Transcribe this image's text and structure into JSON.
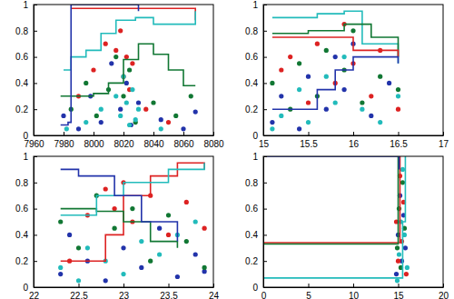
{
  "chart_data": [
    {
      "type": "scatter",
      "xlim": [
        7960,
        8080
      ],
      "ylim": [
        0,
        1
      ],
      "xticks": [
        7960,
        7980,
        8000,
        8020,
        8040,
        8060,
        8080
      ],
      "yticks": [
        0,
        0.2,
        0.4,
        0.6,
        0.8,
        1
      ],
      "series": [
        {
          "type": "scatter",
          "marker": "circle",
          "color": "#2233aa",
          "x": [
            7980,
            7990,
            7998,
            8005,
            8012,
            8018,
            8022,
            8025,
            8030,
            8045,
            8060,
            8068
          ],
          "values": [
            0.15,
            0.05,
            0.3,
            0.1,
            0.55,
            0.2,
            0.4,
            0.08,
            0.25,
            0.12,
            0.05,
            0.18
          ]
        },
        {
          "type": "scatter",
          "marker": "circle",
          "color": "#117733",
          "x": [
            7985,
            7995,
            8002,
            8010,
            8015,
            8020,
            8024,
            8028,
            8040,
            8055,
            8065
          ],
          "values": [
            0.2,
            0.4,
            0.15,
            0.35,
            0.6,
            0.3,
            0.5,
            0.1,
            0.25,
            0.15,
            0.3
          ]
        },
        {
          "type": "scatter",
          "marker": "circle",
          "color": "#dd2222",
          "x": [
            7990,
            8000,
            8008,
            8015,
            8018,
            8020,
            8022,
            8024,
            8026,
            8035,
            8050
          ],
          "values": [
            0.3,
            0.5,
            0.7,
            0.65,
            0.8,
            0.45,
            0.6,
            0.35,
            0.55,
            0.2,
            0.1
          ]
        },
        {
          "type": "scatter",
          "marker": "circle",
          "color": "#22bbbb",
          "x": [
            7982,
            7995,
            8005,
            8015,
            8018,
            8020,
            8022,
            8024,
            8026,
            8028,
            8030,
            8045
          ],
          "values": [
            0.05,
            0.1,
            0.2,
            0.3,
            0.15,
            0.45,
            0.25,
            0.08,
            0.35,
            0.12,
            0.2,
            0.05
          ]
        },
        {
          "type": "line",
          "line_style": "step",
          "color": "#dd2222",
          "x": [
            7985,
            8060,
            8068
          ],
          "values": [
            0.97,
            0.97,
            0.88
          ]
        },
        {
          "type": "line",
          "line_style": "step",
          "color": "#22bbbb",
          "x": [
            7980,
            7985,
            7995,
            8005,
            8015,
            8028,
            8040,
            8060,
            8068
          ],
          "values": [
            0.5,
            0.6,
            0.65,
            0.78,
            0.88,
            0.9,
            0.85,
            0.85,
            0.95
          ]
        },
        {
          "type": "line",
          "line_style": "step",
          "color": "#117733",
          "x": [
            7978,
            8000,
            8010,
            8020,
            8030,
            8040,
            8050,
            8060,
            8068
          ],
          "values": [
            0.3,
            0.32,
            0.4,
            0.58,
            0.7,
            0.62,
            0.5,
            0.38,
            0.38
          ]
        },
        {
          "type": "line",
          "line_style": "step",
          "color": "#2233aa",
          "x": [
            7978,
            7983,
            7985,
            8020,
            8030
          ],
          "values": [
            0.08,
            0.1,
            1,
            1,
            0.95
          ]
        }
      ]
    },
    {
      "type": "scatter",
      "xlim": [
        15,
        17
      ],
      "ylim": [
        0,
        1
      ],
      "xticks": [
        15,
        15.5,
        16,
        16.5,
        17
      ],
      "yticks": [
        0,
        0.2,
        0.4,
        0.6,
        0.8,
        1
      ],
      "series": [
        {
          "type": "scatter",
          "marker": "circle",
          "color": "#2233aa",
          "x": [
            15.1,
            15.2,
            15.4,
            15.5,
            15.7,
            15.8,
            15.9,
            16.0,
            16.2,
            16.4
          ],
          "values": [
            0.1,
            0.3,
            0.05,
            0.45,
            0.2,
            0.6,
            0.35,
            0.7,
            0.15,
            0.4
          ]
        },
        {
          "type": "scatter",
          "marker": "circle",
          "color": "#117733",
          "x": [
            15.1,
            15.3,
            15.4,
            15.6,
            15.7,
            15.9,
            16.0,
            16.1,
            16.3,
            16.5
          ],
          "values": [
            0.4,
            0.2,
            0.55,
            0.3,
            0.65,
            0.5,
            0.8,
            0.25,
            0.45,
            0.35
          ]
        },
        {
          "type": "scatter",
          "marker": "circle",
          "color": "#dd2222",
          "x": [
            15.2,
            15.3,
            15.5,
            15.6,
            15.8,
            15.9,
            16.0,
            16.2,
            16.3,
            16.5
          ],
          "values": [
            0.5,
            0.6,
            0.25,
            0.7,
            0.4,
            0.85,
            0.55,
            0.3,
            0.65,
            0.2
          ]
        },
        {
          "type": "scatter",
          "marker": "circle",
          "color": "#22bbbb",
          "x": [
            15.1,
            15.2,
            15.4,
            15.5,
            15.7,
            15.8,
            15.9,
            16.1,
            16.3,
            16.5
          ],
          "values": [
            0.05,
            0.15,
            0.35,
            0.1,
            0.45,
            0.25,
            0.6,
            0.2,
            0.1,
            0.3
          ]
        },
        {
          "type": "line",
          "line_style": "step",
          "color": "#22bbbb",
          "x": [
            15.1,
            15.6,
            15.9,
            16.1,
            16.5
          ],
          "values": [
            0.9,
            0.93,
            0.95,
            0.7,
            0.55
          ]
        },
        {
          "type": "line",
          "line_style": "step",
          "color": "#117733",
          "x": [
            15.1,
            15.5,
            15.9,
            16.2,
            16.5
          ],
          "values": [
            0.78,
            0.8,
            0.85,
            0.75,
            0.6
          ]
        },
        {
          "type": "line",
          "line_style": "step",
          "color": "#dd2222",
          "x": [
            15.1,
            15.8,
            16.0,
            16.5
          ],
          "values": [
            0.75,
            0.75,
            0.65,
            0.6
          ]
        },
        {
          "type": "line",
          "line_style": "step",
          "color": "#2233aa",
          "x": [
            15.1,
            15.6,
            15.8,
            16.0,
            16.5
          ],
          "values": [
            0.2,
            0.35,
            0.5,
            0.6,
            0.55
          ]
        }
      ]
    },
    {
      "type": "scatter",
      "xlim": [
        22,
        24
      ],
      "ylim": [
        0,
        1
      ],
      "xticks": [
        22,
        22.5,
        23,
        23.5,
        24
      ],
      "yticks": [
        0,
        0.2,
        0.4,
        0.6,
        0.8,
        1
      ],
      "series": [
        {
          "type": "scatter",
          "marker": "circle",
          "color": "#2233aa",
          "x": [
            22.3,
            22.4,
            22.6,
            22.8,
            23.0,
            23.2,
            23.4,
            23.6,
            23.8,
            23.9
          ],
          "values": [
            0.1,
            0.4,
            0.2,
            0.05,
            0.3,
            0.15,
            0.45,
            0.08,
            0.25,
            0.12
          ]
        },
        {
          "type": "scatter",
          "marker": "circle",
          "color": "#117733",
          "x": [
            22.3,
            22.5,
            22.7,
            22.9,
            23.1,
            23.3,
            23.5,
            23.7,
            23.9
          ],
          "values": [
            0.5,
            0.3,
            0.7,
            0.45,
            0.6,
            0.2,
            0.55,
            0.35,
            0.15
          ]
        },
        {
          "type": "scatter",
          "marker": "circle",
          "color": "#dd2222",
          "x": [
            22.4,
            22.6,
            22.8,
            22.9,
            23.0,
            23.1,
            23.3,
            23.5,
            23.7,
            23.9
          ],
          "values": [
            0.2,
            0.55,
            0.75,
            0.6,
            0.8,
            0.5,
            0.7,
            0.4,
            0.65,
            0.45
          ]
        },
        {
          "type": "scatter",
          "marker": "circle",
          "color": "#22bbbb",
          "x": [
            22.3,
            22.5,
            22.6,
            22.8,
            23.0,
            23.2,
            23.4,
            23.6,
            23.8
          ],
          "values": [
            0.15,
            0.05,
            0.3,
            0.2,
            0.1,
            0.35,
            0.25,
            0.4,
            0.5
          ]
        },
        {
          "type": "line",
          "line_style": "step",
          "color": "#dd2222",
          "x": [
            22.3,
            22.8,
            23.0,
            23.3,
            23.6,
            23.9
          ],
          "values": [
            0.2,
            0.4,
            0.7,
            0.85,
            0.95,
            0.9
          ]
        },
        {
          "type": "line",
          "line_style": "step",
          "color": "#117733",
          "x": [
            22.3,
            22.7,
            23.0,
            23.3,
            23.6
          ],
          "values": [
            0.6,
            0.58,
            0.5,
            0.35,
            0.3
          ]
        },
        {
          "type": "line",
          "line_style": "step",
          "color": "#22bbbb",
          "x": [
            22.3,
            22.7,
            23.0,
            23.5,
            23.9
          ],
          "values": [
            0.55,
            0.7,
            0.8,
            0.9,
            0.95
          ]
        },
        {
          "type": "line",
          "line_style": "step",
          "color": "#2233aa",
          "x": [
            22.3,
            22.5,
            22.9,
            23.2,
            23.6
          ],
          "values": [
            0.9,
            0.85,
            0.7,
            0.5,
            0.35
          ]
        }
      ]
    },
    {
      "type": "scatter",
      "xlim": [
        0,
        20
      ],
      "ylim": [
        0,
        1
      ],
      "xticks": [
        0,
        5,
        10,
        15,
        20
      ],
      "yticks": [
        0,
        0.2,
        0.4,
        0.6,
        0.8,
        1
      ],
      "series": [
        {
          "type": "scatter",
          "marker": "circle",
          "color": "#2233aa",
          "x": [
            14.8,
            15.0,
            15.2,
            15.4,
            15.6,
            15.8
          ],
          "values": [
            0.1,
            0.4,
            0.7,
            0.2,
            0.55,
            0.3
          ]
        },
        {
          "type": "scatter",
          "marker": "circle",
          "color": "#117733",
          "x": [
            14.9,
            15.1,
            15.3,
            15.5,
            15.7
          ],
          "values": [
            0.3,
            0.6,
            0.15,
            0.8,
            0.45
          ]
        },
        {
          "type": "scatter",
          "marker": "circle",
          "color": "#dd2222",
          "x": [
            14.8,
            15.0,
            15.2,
            15.4,
            15.6,
            15.9
          ],
          "values": [
            0.5,
            0.2,
            0.85,
            0.35,
            0.65,
            0.1
          ]
        },
        {
          "type": "scatter",
          "marker": "circle",
          "color": "#22bbbb",
          "x": [
            14.9,
            15.1,
            15.3,
            15.5,
            15.7,
            16.0
          ],
          "values": [
            0.05,
            0.25,
            0.5,
            0.9,
            0.4,
            0.15
          ]
        },
        {
          "type": "line",
          "line_style": "step",
          "color": "#dd2222",
          "x": [
            0,
            14.7,
            15.2
          ],
          "values": [
            0.34,
            0.34,
            1
          ]
        },
        {
          "type": "line",
          "line_style": "step",
          "color": "#117733",
          "x": [
            0,
            14.7,
            15.0
          ],
          "values": [
            0.33,
            0.33,
            1
          ]
        },
        {
          "type": "line",
          "line_style": "step",
          "color": "#22bbbb",
          "x": [
            0,
            14.7,
            15.5,
            15.8
          ],
          "values": [
            0.07,
            0.07,
            0.5,
            1
          ]
        },
        {
          "type": "line",
          "line_style": "step",
          "color": "#2233aa",
          "x": [
            0,
            14.6,
            15.1
          ],
          "values": [
            1,
            1,
            0.9
          ]
        }
      ]
    }
  ]
}
